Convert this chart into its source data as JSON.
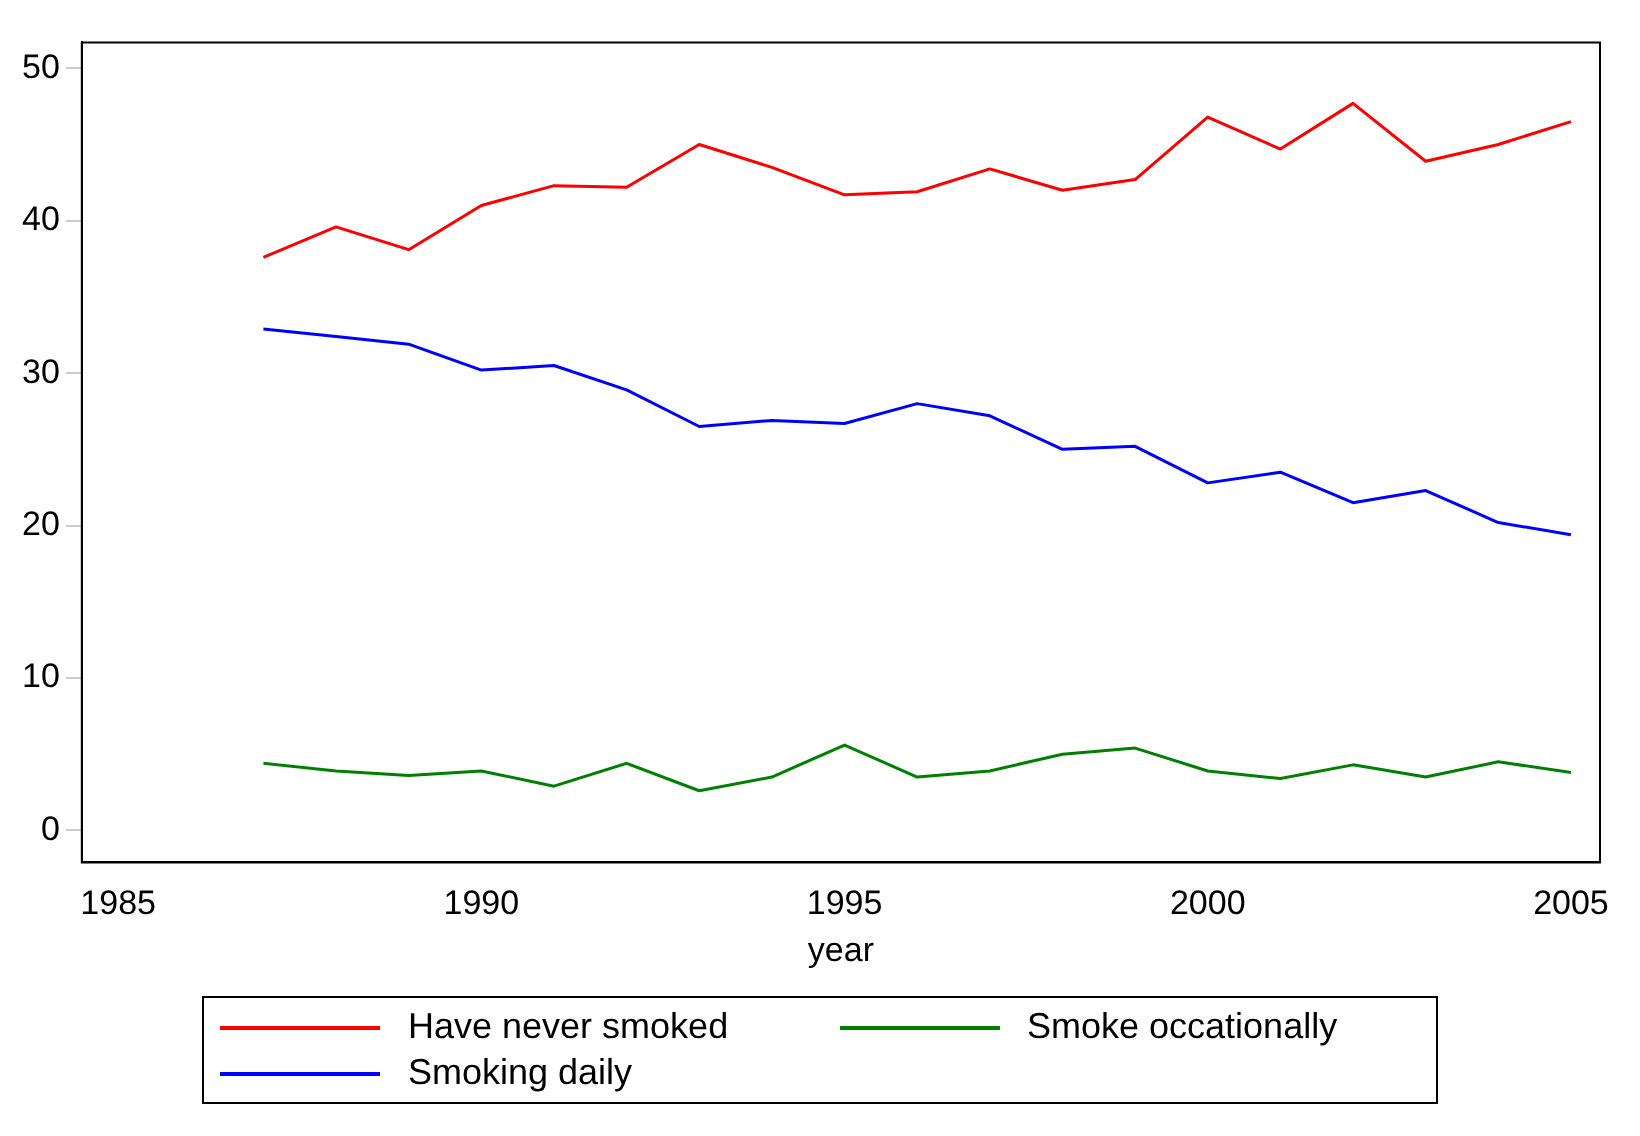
{
  "chart_data": {
    "type": "line",
    "xlabel": "year",
    "x": [
      1987,
      1988,
      1989,
      1990,
      1991,
      1992,
      1993,
      1994,
      1995,
      1996,
      1997,
      1998,
      1999,
      2000,
      2001,
      2002,
      2003,
      2004,
      2005
    ],
    "series": [
      {
        "name": "Have never smoked",
        "color": "#ff0000",
        "values": [
          37.6,
          39.6,
          38.1,
          41.0,
          42.3,
          42.2,
          45.0,
          43.5,
          41.7,
          41.9,
          43.4,
          42.0,
          42.7,
          46.8,
          44.7,
          47.7,
          43.9,
          45.0,
          46.5
        ]
      },
      {
        "name": "Smoke occationally",
        "color": "#008000",
        "values": [
          4.4,
          3.9,
          3.6,
          3.9,
          2.9,
          4.4,
          2.6,
          3.5,
          5.6,
          3.5,
          3.9,
          5.0,
          5.4,
          3.9,
          3.4,
          4.3,
          3.5,
          4.5,
          3.8
        ]
      },
      {
        "name": "Smoking daily",
        "color": "#0000ff",
        "values": [
          32.9,
          32.4,
          31.9,
          30.2,
          30.5,
          28.9,
          26.5,
          26.9,
          26.7,
          28.0,
          27.2,
          25.0,
          25.2,
          22.8,
          23.5,
          21.5,
          22.3,
          20.2,
          19.4
        ]
      }
    ],
    "xlim": [
      1984.5,
      2005.4
    ],
    "xticks": [
      1985,
      1990,
      1995,
      2000,
      2005
    ],
    "ylim": [
      -2.1,
      51.7
    ],
    "yticks": [
      0,
      10,
      20,
      30,
      40,
      50
    ],
    "grid": false,
    "legend": "bottom",
    "marker": "none",
    "line_style": "solid"
  }
}
